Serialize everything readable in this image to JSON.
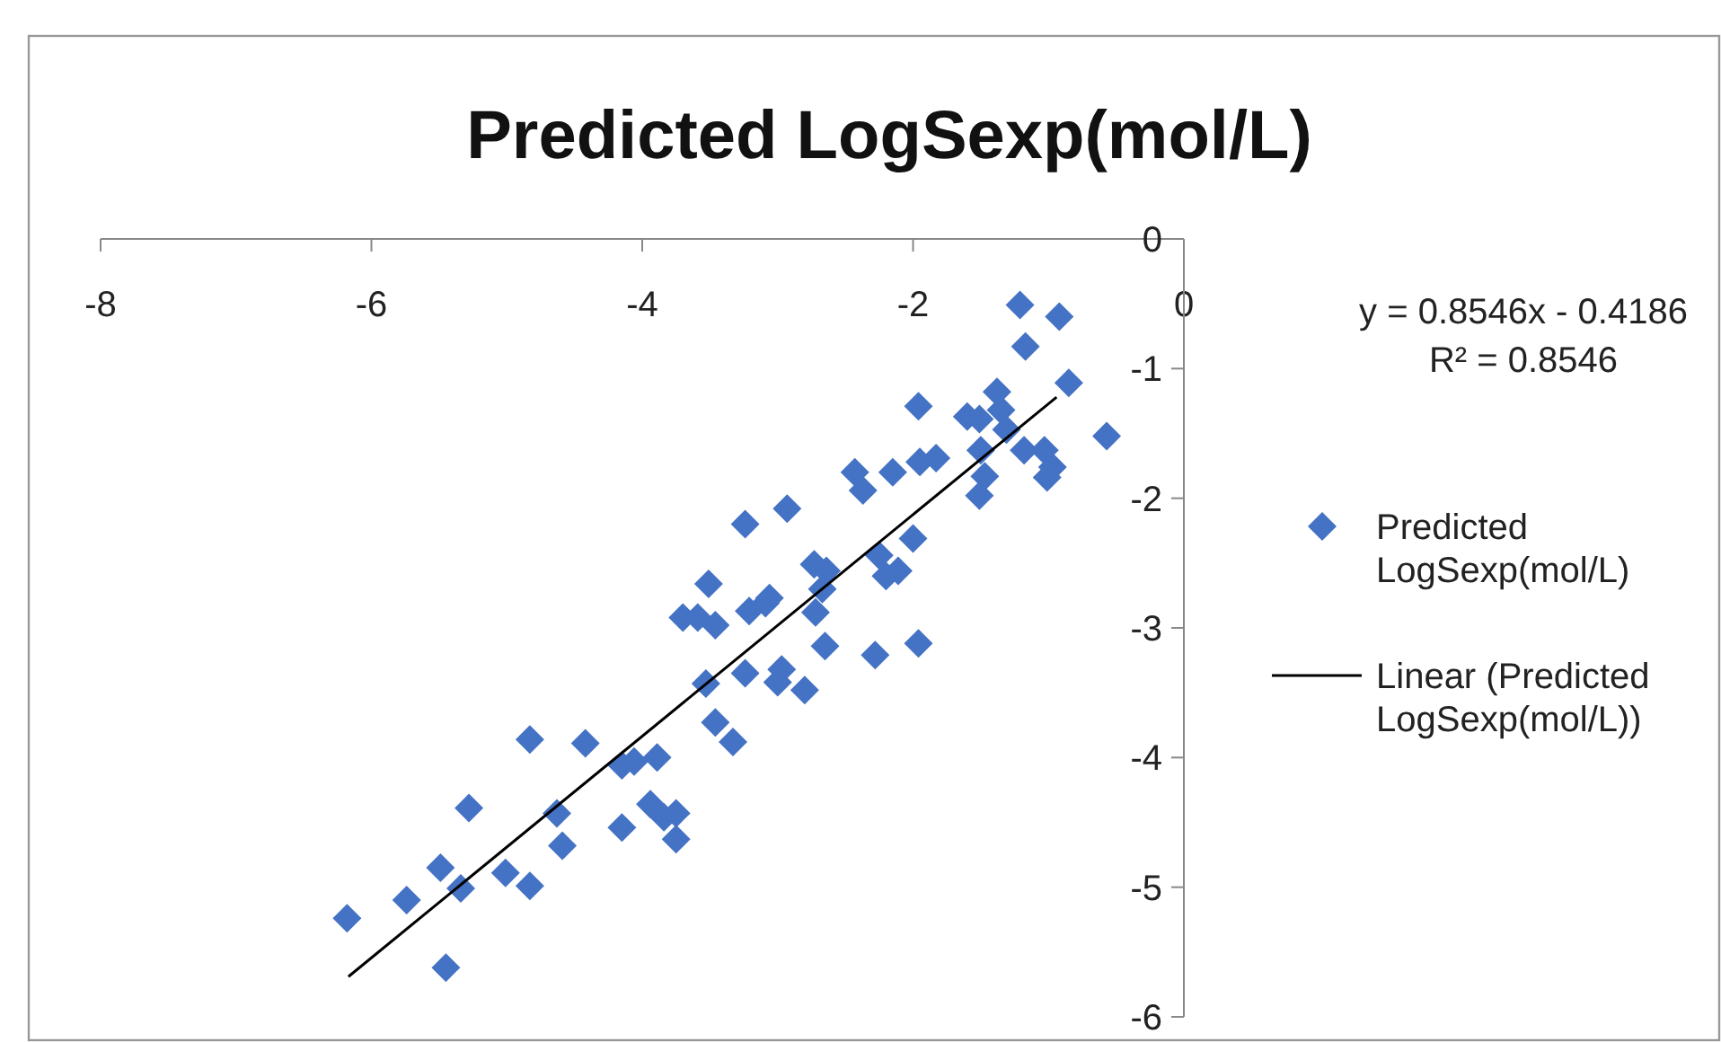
{
  "chart_data": {
    "type": "scatter",
    "title": "Predicted LogSexp(mol/L)",
    "xlim": [
      -8,
      0
    ],
    "xticks": [
      -8,
      -6,
      -4,
      -2,
      0
    ],
    "ylim": [
      -6,
      0
    ],
    "yticks": [
      0,
      -1,
      -2,
      -3,
      -4,
      -5,
      -6
    ],
    "grid": false,
    "legend": "right",
    "marker": "diamond",
    "annotations": [
      "y = 0.8546x - 0.4186",
      "R² = 0.8546"
    ],
    "series": [
      {
        "name": "Predicted LogSexp(mol/L)",
        "color": "#4472c4",
        "x": [
          -6.18,
          -5.74,
          -5.45,
          -5.49,
          -5.34,
          -5.28,
          -5.01,
          -4.83,
          -4.83,
          -4.63,
          -4.59,
          -4.42,
          -4.15,
          -4.15,
          -4.06,
          -3.94,
          -3.89,
          -3.84,
          -3.75,
          -3.75,
          -3.7,
          -3.59,
          -3.51,
          -3.53,
          -3.46,
          -3.46,
          -3.33,
          -3.24,
          -3.24,
          -3.21,
          -3.09,
          -3.06,
          -3.0,
          -2.97,
          -2.93,
          -2.8,
          -2.73,
          -2.72,
          -2.67,
          -2.64,
          -2.65,
          -2.43,
          -2.37,
          -2.28,
          -2.25,
          -2.2,
          -2.15,
          -2.11,
          -2.0,
          -1.96,
          -1.96,
          -1.95,
          -1.83,
          -1.6,
          -1.51,
          -1.5,
          -1.51,
          -1.47,
          -1.38,
          -1.35,
          -1.31,
          -1.21,
          -1.18,
          -1.17,
          -1.03,
          -1.01,
          -0.97,
          -0.92,
          -0.85,
          -0.57
        ],
        "values": [
          -5.24,
          -5.1,
          -5.62,
          -4.85,
          -5.01,
          -4.39,
          -4.89,
          -4.99,
          -3.86,
          -4.43,
          -4.68,
          -3.89,
          -4.54,
          -4.06,
          -4.03,
          -4.36,
          -4.0,
          -4.46,
          -4.63,
          -4.43,
          -2.92,
          -2.92,
          -2.66,
          -3.43,
          -2.98,
          -3.73,
          -3.88,
          -3.35,
          -2.2,
          -2.87,
          -2.81,
          -2.77,
          -3.42,
          -3.32,
          -2.08,
          -3.48,
          -2.51,
          -2.88,
          -2.7,
          -2.56,
          -3.14,
          -1.8,
          -1.94,
          -3.21,
          -2.44,
          -2.6,
          -1.8,
          -2.56,
          -2.31,
          -3.12,
          -1.29,
          -1.72,
          -1.69,
          -1.37,
          -1.98,
          -1.63,
          -1.39,
          -1.83,
          -1.18,
          -1.32,
          -1.47,
          -0.51,
          -1.63,
          -0.83,
          -1.63,
          -1.84,
          -1.76,
          -0.6,
          -1.11,
          -1.52
        ]
      },
      {
        "name": "Linear (Predicted LogSexp(mol/L))",
        "color": "#000000",
        "type": "line",
        "marker": "none",
        "line_style": "solid",
        "x": [
          -6.17,
          -0.94
        ],
        "values": [
          -5.69,
          -1.22
        ]
      }
    ]
  }
}
